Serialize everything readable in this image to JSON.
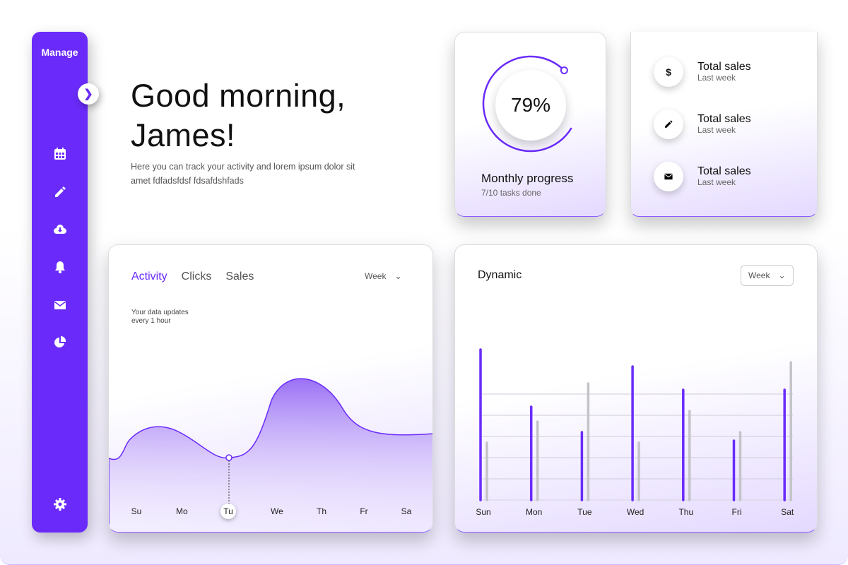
{
  "sidebar": {
    "title": "Manage",
    "items": [
      {
        "icon": "calendar-icon"
      },
      {
        "icon": "pencil-icon"
      },
      {
        "icon": "cloud-download-icon"
      },
      {
        "icon": "bell-icon"
      },
      {
        "icon": "envelope-icon"
      },
      {
        "icon": "pie-chart-icon"
      }
    ],
    "settings_icon": "gear-icon",
    "toggle_icon": "chevron-right-icon"
  },
  "greeting": {
    "line1": "Good morning,",
    "line2": "James!",
    "subtitle": "Here you can track your activity and lorem ipsum dolor sit amet fdfadsfdsf fdsafdshfads"
  },
  "progress": {
    "value": "79%",
    "percent": 79,
    "title": "Monthly progress",
    "subtitle": "7/10 tasks done"
  },
  "stats": [
    {
      "icon": "dollar-icon",
      "glyph": "$",
      "title": "Total sales",
      "subtitle": "Last week"
    },
    {
      "icon": "pencil-icon",
      "title": "Total sales",
      "subtitle": "Last week"
    },
    {
      "icon": "envelope-icon",
      "title": "Total sales",
      "subtitle": "Last week"
    }
  ],
  "activity": {
    "tabs": [
      "Activity",
      "Clicks",
      "Sales"
    ],
    "active_tab": "Activity",
    "period": "Week",
    "note_line1": "Your data updates",
    "note_line2": "every 1 hour",
    "days": [
      "Su",
      "Mo",
      "Tu",
      "We",
      "Th",
      "Fr",
      "Sa"
    ],
    "selected_day": "Tu"
  },
  "dynamic": {
    "title": "Dynamic",
    "period": "Week"
  },
  "chart_data": {
    "type": "bar",
    "categories": [
      "Sun",
      "Mon",
      "Tue",
      "Wed",
      "Thu",
      "Fri",
      "Sat"
    ],
    "series": [
      {
        "values": [
          7.1,
          4.4,
          3.2,
          6.3,
          5.2,
          2.8,
          5.2
        ],
        "color": "#6a2bfa"
      },
      {
        "values": [
          2.7,
          3.7,
          5.5,
          2.7,
          4.2,
          3.2,
          6.5
        ],
        "color": "#c4c4c8"
      }
    ],
    "ylim": [
      0,
      7.5
    ],
    "grid": true
  },
  "colors": {
    "accent": "#6a2bfa"
  }
}
